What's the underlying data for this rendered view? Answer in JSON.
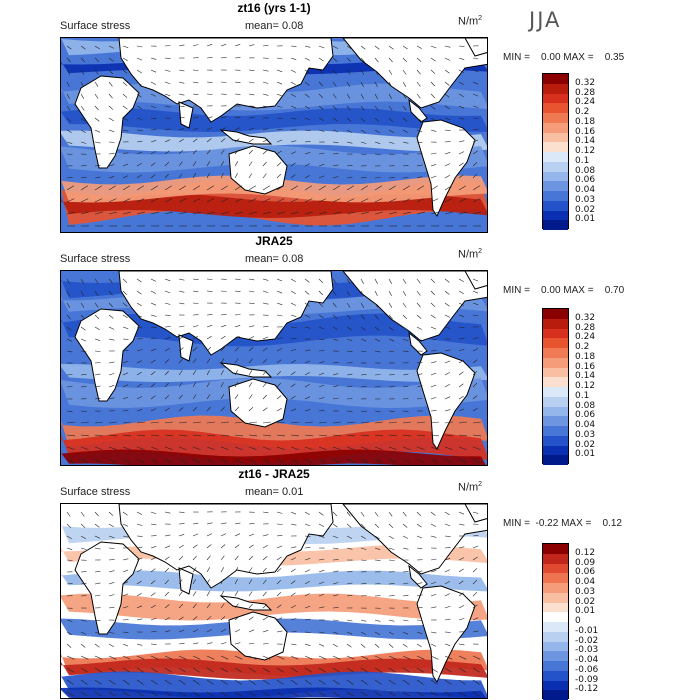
{
  "season": "JJA",
  "panels": [
    {
      "title": "zt16 (yrs 1-1)",
      "variable": "Surface stress",
      "mean_label": "mean=",
      "mean_value": "0.08",
      "unit": "N/m",
      "unit_exp": "2",
      "min_text": "MIN =    0.00 MAX =    0.35",
      "levels": [
        "0.32",
        "0.28",
        "0.24",
        "0.2",
        "0.18",
        "0.16",
        "0.14",
        "0.12",
        "0.1",
        "0.08",
        "0.06",
        "0.04",
        "0.03",
        "0.02",
        "0.01"
      ],
      "colors": [
        "#8b0000",
        "#b71c0d",
        "#d7301f",
        "#e8542f",
        "#f07a53",
        "#f59d7a",
        "#f9bfa3",
        "#fbe0cf",
        "#dbe8f7",
        "#b9d0f0",
        "#94b6ea",
        "#6e96e0",
        "#4876d6",
        "#2453c9",
        "#0a2fb0",
        "#001a8c"
      ]
    },
    {
      "title": "JRA25",
      "variable": "Surface stress",
      "mean_label": "mean=",
      "mean_value": "0.08",
      "unit": "N/m",
      "unit_exp": "2",
      "min_text": "MIN =    0.00 MAX =    0.70",
      "levels": [
        "0.32",
        "0.28",
        "0.24",
        "0.2",
        "0.18",
        "0.16",
        "0.14",
        "0.12",
        "0.1",
        "0.08",
        "0.06",
        "0.04",
        "0.03",
        "0.02",
        "0.01"
      ],
      "colors": [
        "#8b0000",
        "#b71c0d",
        "#d7301f",
        "#e8542f",
        "#f07a53",
        "#f59d7a",
        "#f9bfa3",
        "#fbe0cf",
        "#dbe8f7",
        "#b9d0f0",
        "#94b6ea",
        "#6e96e0",
        "#4876d6",
        "#2453c9",
        "#0a2fb0",
        "#001a8c"
      ]
    },
    {
      "title": "zt16 - JRA25",
      "variable": "Surface stress",
      "mean_label": "mean=",
      "mean_value": "0.01",
      "unit": "N/m",
      "unit_exp": "2",
      "min_text": "MIN =  -0.22 MAX =    0.12",
      "levels": [
        "0.12",
        "0.09",
        "0.06",
        "0.04",
        "0.03",
        "0.02",
        "0.01",
        "0",
        "-0.01",
        "-0.02",
        "-0.03",
        "-0.04",
        "-0.06",
        "-0.09",
        "-0.12"
      ],
      "colors": [
        "#8b0000",
        "#c0261b",
        "#e04a30",
        "#ee7550",
        "#f59d7a",
        "#f9bfa3",
        "#fbe0cf",
        "#ffffff",
        "#dbe8f7",
        "#b9d0f0",
        "#94b6ea",
        "#6e96e0",
        "#4876d6",
        "#2453c9",
        "#0a2fb0",
        "#001a8c"
      ]
    }
  ]
}
